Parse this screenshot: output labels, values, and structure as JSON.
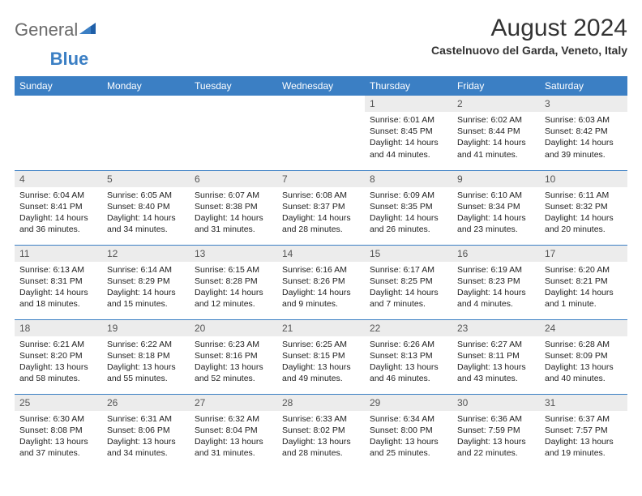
{
  "logo": {
    "word1": "General",
    "word2": "Blue"
  },
  "title": "August 2024",
  "location": "Castelnuovo del Garda, Veneto, Italy",
  "colors": {
    "header_bg": "#3b7fc4",
    "header_fg": "#ffffff",
    "daynum_bg": "#ececec",
    "rule": "#3b7fc4",
    "logo_gray": "#6b6b6b",
    "logo_blue": "#3b7fc4"
  },
  "weekdays": [
    "Sunday",
    "Monday",
    "Tuesday",
    "Wednesday",
    "Thursday",
    "Friday",
    "Saturday"
  ],
  "weeks": [
    [
      null,
      null,
      null,
      null,
      {
        "d": "1",
        "sr": "6:01 AM",
        "ss": "8:45 PM",
        "dl": "14 hours and 44 minutes."
      },
      {
        "d": "2",
        "sr": "6:02 AM",
        "ss": "8:44 PM",
        "dl": "14 hours and 41 minutes."
      },
      {
        "d": "3",
        "sr": "6:03 AM",
        "ss": "8:42 PM",
        "dl": "14 hours and 39 minutes."
      }
    ],
    [
      {
        "d": "4",
        "sr": "6:04 AM",
        "ss": "8:41 PM",
        "dl": "14 hours and 36 minutes."
      },
      {
        "d": "5",
        "sr": "6:05 AM",
        "ss": "8:40 PM",
        "dl": "14 hours and 34 minutes."
      },
      {
        "d": "6",
        "sr": "6:07 AM",
        "ss": "8:38 PM",
        "dl": "14 hours and 31 minutes."
      },
      {
        "d": "7",
        "sr": "6:08 AM",
        "ss": "8:37 PM",
        "dl": "14 hours and 28 minutes."
      },
      {
        "d": "8",
        "sr": "6:09 AM",
        "ss": "8:35 PM",
        "dl": "14 hours and 26 minutes."
      },
      {
        "d": "9",
        "sr": "6:10 AM",
        "ss": "8:34 PM",
        "dl": "14 hours and 23 minutes."
      },
      {
        "d": "10",
        "sr": "6:11 AM",
        "ss": "8:32 PM",
        "dl": "14 hours and 20 minutes."
      }
    ],
    [
      {
        "d": "11",
        "sr": "6:13 AM",
        "ss": "8:31 PM",
        "dl": "14 hours and 18 minutes."
      },
      {
        "d": "12",
        "sr": "6:14 AM",
        "ss": "8:29 PM",
        "dl": "14 hours and 15 minutes."
      },
      {
        "d": "13",
        "sr": "6:15 AM",
        "ss": "8:28 PM",
        "dl": "14 hours and 12 minutes."
      },
      {
        "d": "14",
        "sr": "6:16 AM",
        "ss": "8:26 PM",
        "dl": "14 hours and 9 minutes."
      },
      {
        "d": "15",
        "sr": "6:17 AM",
        "ss": "8:25 PM",
        "dl": "14 hours and 7 minutes."
      },
      {
        "d": "16",
        "sr": "6:19 AM",
        "ss": "8:23 PM",
        "dl": "14 hours and 4 minutes."
      },
      {
        "d": "17",
        "sr": "6:20 AM",
        "ss": "8:21 PM",
        "dl": "14 hours and 1 minute."
      }
    ],
    [
      {
        "d": "18",
        "sr": "6:21 AM",
        "ss": "8:20 PM",
        "dl": "13 hours and 58 minutes."
      },
      {
        "d": "19",
        "sr": "6:22 AM",
        "ss": "8:18 PM",
        "dl": "13 hours and 55 minutes."
      },
      {
        "d": "20",
        "sr": "6:23 AM",
        "ss": "8:16 PM",
        "dl": "13 hours and 52 minutes."
      },
      {
        "d": "21",
        "sr": "6:25 AM",
        "ss": "8:15 PM",
        "dl": "13 hours and 49 minutes."
      },
      {
        "d": "22",
        "sr": "6:26 AM",
        "ss": "8:13 PM",
        "dl": "13 hours and 46 minutes."
      },
      {
        "d": "23",
        "sr": "6:27 AM",
        "ss": "8:11 PM",
        "dl": "13 hours and 43 minutes."
      },
      {
        "d": "24",
        "sr": "6:28 AM",
        "ss": "8:09 PM",
        "dl": "13 hours and 40 minutes."
      }
    ],
    [
      {
        "d": "25",
        "sr": "6:30 AM",
        "ss": "8:08 PM",
        "dl": "13 hours and 37 minutes."
      },
      {
        "d": "26",
        "sr": "6:31 AM",
        "ss": "8:06 PM",
        "dl": "13 hours and 34 minutes."
      },
      {
        "d": "27",
        "sr": "6:32 AM",
        "ss": "8:04 PM",
        "dl": "13 hours and 31 minutes."
      },
      {
        "d": "28",
        "sr": "6:33 AM",
        "ss": "8:02 PM",
        "dl": "13 hours and 28 minutes."
      },
      {
        "d": "29",
        "sr": "6:34 AM",
        "ss": "8:00 PM",
        "dl": "13 hours and 25 minutes."
      },
      {
        "d": "30",
        "sr": "6:36 AM",
        "ss": "7:59 PM",
        "dl": "13 hours and 22 minutes."
      },
      {
        "d": "31",
        "sr": "6:37 AM",
        "ss": "7:57 PM",
        "dl": "13 hours and 19 minutes."
      }
    ]
  ],
  "labels": {
    "sunrise": "Sunrise:",
    "sunset": "Sunset:",
    "daylight": "Daylight:"
  }
}
